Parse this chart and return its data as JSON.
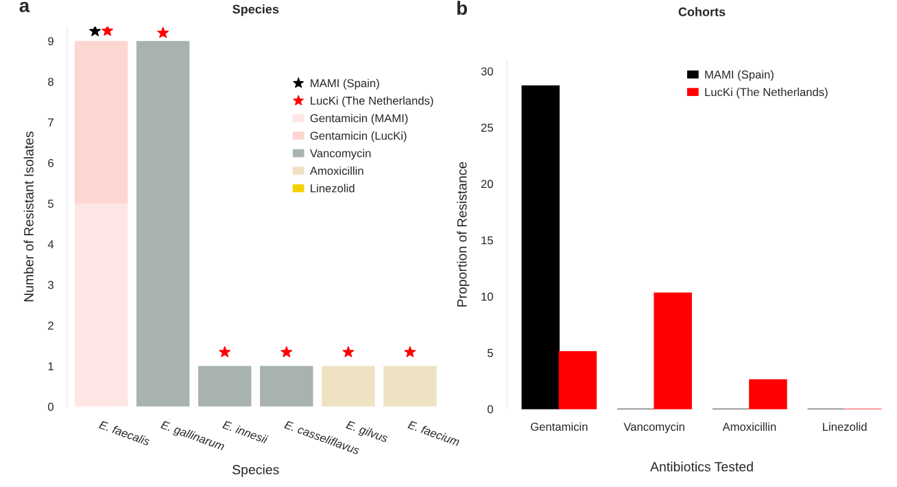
{
  "chart_data": [
    {
      "type": "bar",
      "title": "Species",
      "xlabel": "Species",
      "ylabel": "Number of Resistant Isolates",
      "annotations": [
        "a"
      ],
      "categories": [
        "E. faecalis",
        "E. gallinarum",
        "E. innesii",
        "E. casseliflavus",
        "E. gilvus",
        "E. faecium"
      ],
      "stacked": true,
      "ylim": [
        0,
        9.35
      ],
      "yticks": [
        0,
        1,
        2,
        3,
        4,
        5,
        6,
        7,
        8,
        9
      ],
      "grid": false,
      "legend": "top right",
      "marker": "star",
      "series": [
        {
          "name": "MAMI (Spain)",
          "type": "scatter",
          "color": "#000000",
          "values": [
            9.24,
            null,
            null,
            null,
            null,
            null
          ]
        },
        {
          "name": "LucKi (The Netherlands)",
          "type": "scatter",
          "color": "#ff0000",
          "values": [
            9.25,
            9.2,
            1.34,
            1.34,
            1.34,
            1.34
          ]
        },
        {
          "name": "Gentamicin (MAMI)",
          "color": "#fde6e3",
          "values": [
            5,
            0,
            0,
            0,
            0,
            0
          ]
        },
        {
          "name": "Gentamicin (LucKi)",
          "color": "#fdd5d1",
          "values": [
            4,
            0,
            0,
            0,
            0,
            0
          ]
        },
        {
          "name": "Vancomycin",
          "color": "#a8b3b0",
          "values": [
            0,
            9,
            1,
            1,
            0,
            0
          ]
        },
        {
          "name": "Amoxicillin",
          "color": "#efe2c2",
          "values": [
            0,
            0,
            0,
            0,
            1,
            1
          ]
        },
        {
          "name": "Linezolid",
          "color": "#f5cf00",
          "values": [
            0,
            0,
            0,
            0,
            0,
            0
          ]
        }
      ]
    },
    {
      "type": "bar",
      "title": "Cohorts",
      "xlabel": "Antibiotics Tested",
      "ylabel": "Proportion of Resistance",
      "annotations": [
        "b"
      ],
      "categories": [
        "Gentamicin",
        "Vancomycin",
        "Amoxicillin",
        "Linezolid"
      ],
      "ylim": [
        0,
        31
      ],
      "yticks": [
        0,
        5,
        10,
        15,
        20,
        25,
        30
      ],
      "grid": false,
      "legend": "top right",
      "series": [
        {
          "name": "MAMI (Spain)",
          "color": "#000000",
          "values": [
            28.7,
            0,
            0,
            0
          ]
        },
        {
          "name": "LucKi (The Netherlands)",
          "color": "#ff0000",
          "values": [
            5.1,
            10.3,
            2.6,
            0
          ]
        }
      ]
    }
  ]
}
